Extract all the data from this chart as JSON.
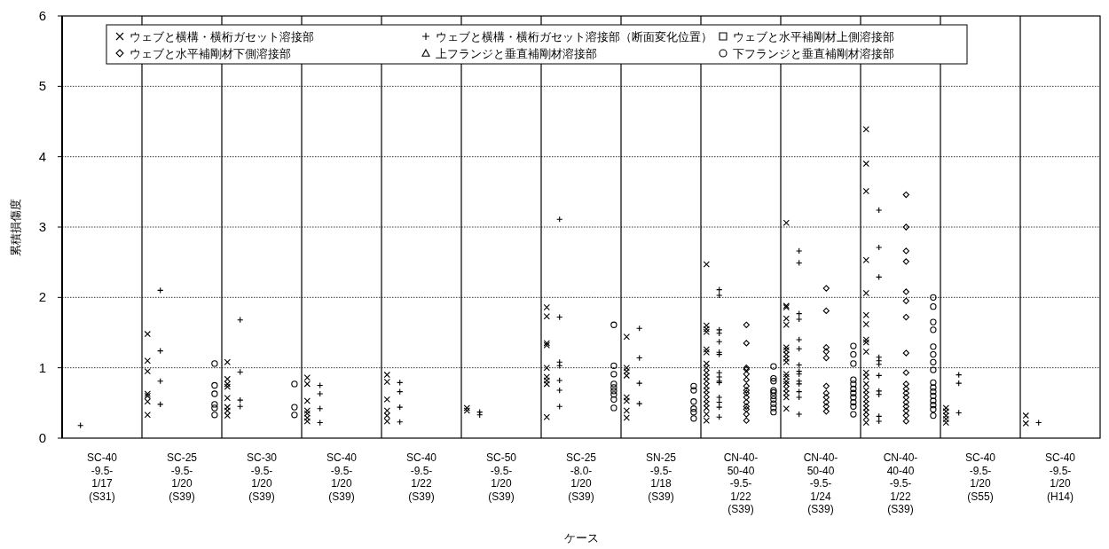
{
  "chart_data": {
    "type": "scatter",
    "xlabel": "ケース",
    "ylabel": "累積損傷度",
    "categories": [
      "SC-40\n-9.5-\n1/17\n(S31)",
      "SC-25\n-9.5-\n1/20\n(S39)",
      "SC-30\n-9.5-\n1/20\n(S39)",
      "SC-40\n-9.5-\n1/20\n(S39)",
      "SC-40\n-9.5-\n1/22\n(S39)",
      "SC-50\n-9.5-\n1/20\n(S39)",
      "SC-25\n-8.0-\n1/20\n(S39)",
      "SN-25\n-9.5-\n1/18\n(S39)",
      "CN-40-\n50-40\n-9.5-\n1/22\n(S39)",
      "CN-40-\n50-40\n-9.5-\n1/24\n(S39)",
      "CN-40-\n40-40\n-9.5-\n1/22\n(S39)",
      "SC-40\n-9.5-\n1/20\n(S55)",
      "SC-40\n-9.5-\n1/20\n(H14)"
    ],
    "ylim": [
      0,
      6
    ],
    "yticks": [
      0,
      1,
      2,
      3,
      4,
      5,
      6
    ],
    "grid": "y",
    "legend": "top",
    "series": [
      {
        "name": "ウェブと横構・横桁ガセット溶接部",
        "color": "#000000",
        "marker": "cross",
        "x": [
          "SC-25\n-9.5-\n1/20\n(S39)",
          "SC-25\n-9.5-\n1/20\n(S39)",
          "SC-25\n-9.5-\n1/20\n(S39)",
          "SC-25\n-9.5-\n1/20\n(S39)",
          "SC-25\n-9.5-\n1/20\n(S39)",
          "SC-25\n-9.5-\n1/20\n(S39)",
          "SC-25\n-9.5-\n1/20\n(S39)",
          "SC-30\n-9.5-\n1/20\n(S39)",
          "SC-30\n-9.5-\n1/20\n(S39)",
          "SC-30\n-9.5-\n1/20\n(S39)",
          "SC-30\n-9.5-\n1/20\n(S39)",
          "SC-30\n-9.5-\n1/20\n(S39)",
          "SC-30\n-9.5-\n1/20\n(S39)",
          "SC-30\n-9.5-\n1/20\n(S39)",
          "SC-30\n-9.5-\n1/20\n(S39)",
          "SC-40\n-9.5-\n1/20\n(S39)",
          "SC-40\n-9.5-\n1/20\n(S39)",
          "SC-40\n-9.5-\n1/20\n(S39)",
          "SC-40\n-9.5-\n1/20\n(S39)",
          "SC-40\n-9.5-\n1/20\n(S39)",
          "SC-40\n-9.5-\n1/20\n(S39)",
          "SC-40\n-9.5-\n1/20\n(S39)",
          "SC-40\n-9.5-\n1/22\n(S39)",
          "SC-40\n-9.5-\n1/22\n(S39)",
          "SC-40\n-9.5-\n1/22\n(S39)",
          "SC-40\n-9.5-\n1/22\n(S39)",
          "SC-40\n-9.5-\n1/22\n(S39)",
          "SC-40\n-9.5-\n1/22\n(S39)",
          "SC-50\n-9.5-\n1/20\n(S39)",
          "SC-50\n-9.5-\n1/20\n(S39)",
          "SC-25\n-8.0-\n1/20\n(S39)",
          "SC-25\n-8.0-\n1/20\n(S39)",
          "SC-25\n-8.0-\n1/20\n(S39)",
          "SC-25\n-8.0-\n1/20\n(S39)",
          "SC-25\n-8.0-\n1/20\n(S39)",
          "SC-25\n-8.0-\n1/20\n(S39)",
          "SC-25\n-8.0-\n1/20\n(S39)",
          "SC-25\n-8.0-\n1/20\n(S39)",
          "SC-25\n-8.0-\n1/20\n(S39)",
          "SN-25\n-9.5-\n1/18\n(S39)",
          "SN-25\n-9.5-\n1/18\n(S39)",
          "SN-25\n-9.5-\n1/18\n(S39)",
          "SN-25\n-9.5-\n1/18\n(S39)",
          "SN-25\n-9.5-\n1/18\n(S39)",
          "SN-25\n-9.5-\n1/18\n(S39)",
          "SN-25\n-9.5-\n1/18\n(S39)",
          "SN-25\n-9.5-\n1/18\n(S39)",
          "CN-40-\n50-40\n-9.5-\n1/22\n(S39)",
          "CN-40-\n50-40\n-9.5-\n1/22\n(S39)",
          "CN-40-\n50-40\n-9.5-\n1/22\n(S39)",
          "CN-40-\n50-40\n-9.5-\n1/22\n(S39)",
          "CN-40-\n50-40\n-9.5-\n1/22\n(S39)",
          "CN-40-\n50-40\n-9.5-\n1/22\n(S39)",
          "CN-40-\n50-40\n-9.5-\n1/22\n(S39)",
          "CN-40-\n50-40\n-9.5-\n1/22\n(S39)",
          "CN-40-\n50-40\n-9.5-\n1/22\n(S39)",
          "CN-40-\n50-40\n-9.5-\n1/22\n(S39)",
          "CN-40-\n50-40\n-9.5-\n1/22\n(S39)",
          "CN-40-\n50-40\n-9.5-\n1/22\n(S39)",
          "CN-40-\n50-40\n-9.5-\n1/22\n(S39)",
          "CN-40-\n50-40\n-9.5-\n1/22\n(S39)",
          "CN-40-\n50-40\n-9.5-\n1/22\n(S39)",
          "CN-40-\n50-40\n-9.5-\n1/22\n(S39)",
          "CN-40-\n50-40\n-9.5-\n1/22\n(S39)",
          "CN-40-\n50-40\n-9.5-\n1/22\n(S39)",
          "CN-40-\n50-40\n-9.5-\n1/22\n(S39)",
          "CN-40-\n50-40\n-9.5-\n1/24\n(S39)",
          "CN-40-\n50-40\n-9.5-\n1/24\n(S39)",
          "CN-40-\n50-40\n-9.5-\n1/24\n(S39)",
          "CN-40-\n50-40\n-9.5-\n1/24\n(S39)",
          "CN-40-\n50-40\n-9.5-\n1/24\n(S39)",
          "CN-40-\n50-40\n-9.5-\n1/24\n(S39)",
          "CN-40-\n50-40\n-9.5-\n1/24\n(S39)",
          "CN-40-\n50-40\n-9.5-\n1/24\n(S39)",
          "CN-40-\n50-40\n-9.5-\n1/24\n(S39)",
          "CN-40-\n50-40\n-9.5-\n1/24\n(S39)",
          "CN-40-\n50-40\n-9.5-\n1/24\n(S39)",
          "CN-40-\n50-40\n-9.5-\n1/24\n(S39)",
          "CN-40-\n50-40\n-9.5-\n1/24\n(S39)",
          "CN-40-\n50-40\n-9.5-\n1/24\n(S39)",
          "CN-40-\n50-40\n-9.5-\n1/24\n(S39)",
          "CN-40-\n50-40\n-9.5-\n1/24\n(S39)",
          "CN-40-\n50-40\n-9.5-\n1/24\n(S39)",
          "CN-40-\n50-40\n-9.5-\n1/24\n(S39)",
          "CN-40-\n40-40\n-9.5-\n1/22\n(S39)",
          "CN-40-\n40-40\n-9.5-\n1/22\n(S39)",
          "CN-40-\n40-40\n-9.5-\n1/22\n(S39)",
          "CN-40-\n40-40\n-9.5-\n1/22\n(S39)",
          "CN-40-\n40-40\n-9.5-\n1/22\n(S39)",
          "CN-40-\n40-40\n-9.5-\n1/22\n(S39)",
          "CN-40-\n40-40\n-9.5-\n1/22\n(S39)",
          "CN-40-\n40-40\n-9.5-\n1/22\n(S39)",
          "CN-40-\n40-40\n-9.5-\n1/22\n(S39)",
          "CN-40-\n40-40\n-9.5-\n1/22\n(S39)",
          "CN-40-\n40-40\n-9.5-\n1/22\n(S39)",
          "CN-40-\n40-40\n-9.5-\n1/22\n(S39)",
          "CN-40-\n40-40\n-9.5-\n1/22\n(S39)",
          "CN-40-\n40-40\n-9.5-\n1/22\n(S39)",
          "CN-40-\n40-40\n-9.5-\n1/22\n(S39)",
          "CN-40-\n40-40\n-9.5-\n1/22\n(S39)",
          "CN-40-\n40-40\n-9.5-\n1/22\n(S39)",
          "CN-40-\n40-40\n-9.5-\n1/22\n(S39)",
          "CN-40-\n40-40\n-9.5-\n1/22\n(S39)",
          "CN-40-\n40-40\n-9.5-\n1/22\n(S39)",
          "CN-40-\n40-40\n-9.5-\n1/22\n(S39)",
          "SC-40\n-9.5-\n1/20\n(S55)",
          "SC-40\n-9.5-\n1/20\n(S55)",
          "SC-40\n-9.5-\n1/20\n(S55)",
          "SC-40\n-9.5-\n1/20\n(S55)",
          "SC-40\n-9.5-\n1/20\n(S55)",
          "SC-40\n-9.5-\n1/20\n(H14)",
          "SC-40\n-9.5-\n1/20\n(H14)"
        ],
        "values": [
          1.48,
          1.1,
          0.95,
          0.63,
          0.6,
          0.52,
          0.33,
          1.08,
          0.84,
          0.77,
          0.73,
          0.57,
          0.44,
          0.39,
          0.32,
          0.86,
          0.77,
          0.53,
          0.39,
          0.35,
          0.29,
          0.24,
          0.9,
          0.8,
          0.55,
          0.39,
          0.32,
          0.24,
          0.43,
          0.39,
          1.86,
          1.73,
          1.35,
          1.32,
          1.0,
          0.87,
          0.82,
          0.77,
          0.3,
          1.44,
          1.0,
          0.95,
          0.89,
          0.58,
          0.53,
          0.39,
          0.29,
          2.47,
          1.6,
          1.55,
          1.51,
          1.26,
          1.22,
          1.06,
          1.0,
          0.93,
          0.87,
          0.81,
          0.74,
          0.68,
          0.62,
          0.55,
          0.49,
          0.43,
          0.34,
          0.25,
          3.06,
          1.88,
          1.86,
          1.7,
          1.61,
          1.29,
          1.25,
          1.19,
          1.13,
          1.08,
          0.91,
          0.87,
          0.81,
          0.77,
          0.7,
          0.64,
          0.58,
          0.42,
          4.39,
          3.9,
          3.51,
          2.53,
          2.06,
          1.75,
          1.62,
          1.4,
          1.36,
          1.23,
          0.93,
          0.87,
          0.77,
          0.68,
          0.62,
          0.55,
          0.49,
          0.43,
          0.37,
          0.3,
          0.22,
          0.43,
          0.38,
          0.32,
          0.27,
          0.22,
          0.32,
          0.21
        ]
      },
      {
        "name": "ウェブと横構・横桁ガセット溶接部（断面変化位置）",
        "color": "#000000",
        "marker": "plus",
        "x": [
          "SC-40\n-9.5-\n1/17\n(S31)",
          "SC-25\n-9.5-\n1/20\n(S39)",
          "SC-25\n-9.5-\n1/20\n(S39)",
          "SC-25\n-9.5-\n1/20\n(S39)",
          "SC-25\n-9.5-\n1/20\n(S39)",
          "SC-30\n-9.5-\n1/20\n(S39)",
          "SC-30\n-9.5-\n1/20\n(S39)",
          "SC-30\n-9.5-\n1/20\n(S39)",
          "SC-30\n-9.5-\n1/20\n(S39)",
          "SC-40\n-9.5-\n1/20\n(S39)",
          "SC-40\n-9.5-\n1/20\n(S39)",
          "SC-40\n-9.5-\n1/20\n(S39)",
          "SC-40\n-9.5-\n1/20\n(S39)",
          "SC-40\n-9.5-\n1/22\n(S39)",
          "SC-40\n-9.5-\n1/22\n(S39)",
          "SC-40\n-9.5-\n1/22\n(S39)",
          "SC-40\n-9.5-\n1/22\n(S39)",
          "SC-50\n-9.5-\n1/20\n(S39)",
          "SC-50\n-9.5-\n1/20\n(S39)",
          "SC-25\n-8.0-\n1/20\n(S39)",
          "SC-25\n-8.0-\n1/20\n(S39)",
          "SC-25\n-8.0-\n1/20\n(S39)",
          "SC-25\n-8.0-\n1/20\n(S39)",
          "SC-25\n-8.0-\n1/20\n(S39)",
          "SC-25\n-8.0-\n1/20\n(S39)",
          "SC-25\n-8.0-\n1/20\n(S39)",
          "SN-25\n-9.5-\n1/18\n(S39)",
          "SN-25\n-9.5-\n1/18\n(S39)",
          "SN-25\n-9.5-\n1/18\n(S39)",
          "SN-25\n-9.5-\n1/18\n(S39)",
          "CN-40-\n50-40\n-9.5-\n1/22\n(S39)",
          "CN-40-\n50-40\n-9.5-\n1/22\n(S39)",
          "CN-40-\n50-40\n-9.5-\n1/22\n(S39)",
          "CN-40-\n50-40\n-9.5-\n1/22\n(S39)",
          "CN-40-\n50-40\n-9.5-\n1/22\n(S39)",
          "CN-40-\n50-40\n-9.5-\n1/22\n(S39)",
          "CN-40-\n50-40\n-9.5-\n1/22\n(S39)",
          "CN-40-\n50-40\n-9.5-\n1/22\n(S39)",
          "CN-40-\n50-40\n-9.5-\n1/22\n(S39)",
          "CN-40-\n50-40\n-9.5-\n1/22\n(S39)",
          "CN-40-\n50-40\n-9.5-\n1/22\n(S39)",
          "CN-40-\n50-40\n-9.5-\n1/22\n(S39)",
          "CN-40-\n50-40\n-9.5-\n1/22\n(S39)",
          "CN-40-\n50-40\n-9.5-\n1/22\n(S39)",
          "CN-40-\n50-40\n-9.5-\n1/22\n(S39)",
          "CN-40-\n50-40\n-9.5-\n1/24\n(S39)",
          "CN-40-\n50-40\n-9.5-\n1/24\n(S39)",
          "CN-40-\n50-40\n-9.5-\n1/24\n(S39)",
          "CN-40-\n50-40\n-9.5-\n1/24\n(S39)",
          "CN-40-\n50-40\n-9.5-\n1/24\n(S39)",
          "CN-40-\n50-40\n-9.5-\n1/24\n(S39)",
          "CN-40-\n50-40\n-9.5-\n1/24\n(S39)",
          "CN-40-\n50-40\n-9.5-\n1/24\n(S39)",
          "CN-40-\n50-40\n-9.5-\n1/24\n(S39)",
          "CN-40-\n50-40\n-9.5-\n1/24\n(S39)",
          "CN-40-\n50-40\n-9.5-\n1/24\n(S39)",
          "CN-40-\n50-40\n-9.5-\n1/24\n(S39)",
          "CN-40-\n50-40\n-9.5-\n1/24\n(S39)",
          "CN-40-\n50-40\n-9.5-\n1/24\n(S39)",
          "CN-40-\n40-40\n-9.5-\n1/22\n(S39)",
          "CN-40-\n40-40\n-9.5-\n1/22\n(S39)",
          "CN-40-\n40-40\n-9.5-\n1/22\n(S39)",
          "CN-40-\n40-40\n-9.5-\n1/22\n(S39)",
          "CN-40-\n40-40\n-9.5-\n1/22\n(S39)",
          "CN-40-\n40-40\n-9.5-\n1/22\n(S39)",
          "CN-40-\n40-40\n-9.5-\n1/22\n(S39)",
          "CN-40-\n40-40\n-9.5-\n1/22\n(S39)",
          "CN-40-\n40-40\n-9.5-\n1/22\n(S39)",
          "CN-40-\n40-40\n-9.5-\n1/22\n(S39)",
          "CN-40-\n40-40\n-9.5-\n1/22\n(S39)",
          "SC-40\n-9.5-\n1/20\n(S55)",
          "SC-40\n-9.5-\n1/20\n(S55)",
          "SC-40\n-9.5-\n1/20\n(S55)",
          "SC-40\n-9.5-\n1/20\n(H14)"
        ],
        "values": [
          0.18,
          2.1,
          1.24,
          0.81,
          0.48,
          1.68,
          0.94,
          0.54,
          0.45,
          0.75,
          0.63,
          0.42,
          0.22,
          0.79,
          0.66,
          0.44,
          0.23,
          0.37,
          0.33,
          3.11,
          1.72,
          1.08,
          1.03,
          0.82,
          0.68,
          0.45,
          1.56,
          1.14,
          0.78,
          0.49,
          2.11,
          2.03,
          1.54,
          1.49,
          1.37,
          1.22,
          1.19,
          0.93,
          0.87,
          0.81,
          0.79,
          0.58,
          0.51,
          0.44,
          0.3,
          2.66,
          2.49,
          1.77,
          1.69,
          1.4,
          1.27,
          1.04,
          0.95,
          0.91,
          0.81,
          0.77,
          0.66,
          0.58,
          0.34,
          3.24,
          2.71,
          2.29,
          1.15,
          1.1,
          1.05,
          0.89,
          0.67,
          0.62,
          0.31,
          0.24,
          0.9,
          0.78,
          0.36,
          0.22
        ]
      },
      {
        "name": "ウェブと水平補剛材上側溶接部",
        "color": "#000000",
        "marker": "square",
        "values": [
          null,
          null,
          null,
          null,
          null,
          null,
          null,
          null,
          null,
          null,
          null,
          null,
          null
        ]
      },
      {
        "name": "ウェブと水平補剛材下側溶接部",
        "color": "#000000",
        "marker": "diamond",
        "x": [
          "CN-40-\n50-40\n-9.5-\n1/22\n(S39)",
          "CN-40-\n50-40\n-9.5-\n1/22\n(S39)",
          "CN-40-\n50-40\n-9.5-\n1/22\n(S39)",
          "CN-40-\n50-40\n-9.5-\n1/22\n(S39)",
          "CN-40-\n50-40\n-9.5-\n1/22\n(S39)",
          "CN-40-\n50-40\n-9.5-\n1/22\n(S39)",
          "CN-40-\n50-40\n-9.5-\n1/22\n(S39)",
          "CN-40-\n50-40\n-9.5-\n1/22\n(S39)",
          "CN-40-\n50-40\n-9.5-\n1/22\n(S39)",
          "CN-40-\n50-40\n-9.5-\n1/22\n(S39)",
          "CN-40-\n50-40\n-9.5-\n1/22\n(S39)",
          "CN-40-\n50-40\n-9.5-\n1/22\n(S39)",
          "CN-40-\n50-40\n-9.5-\n1/22\n(S39)",
          "CN-40-\n50-40\n-9.5-\n1/22\n(S39)",
          "CN-40-\n50-40\n-9.5-\n1/22\n(S39)",
          "CN-40-\n50-40\n-9.5-\n1/24\n(S39)",
          "CN-40-\n50-40\n-9.5-\n1/24\n(S39)",
          "CN-40-\n50-40\n-9.5-\n1/24\n(S39)",
          "CN-40-\n50-40\n-9.5-\n1/24\n(S39)",
          "CN-40-\n50-40\n-9.5-\n1/24\n(S39)",
          "CN-40-\n50-40\n-9.5-\n1/24\n(S39)",
          "CN-40-\n50-40\n-9.5-\n1/24\n(S39)",
          "CN-40-\n50-40\n-9.5-\n1/24\n(S39)",
          "CN-40-\n50-40\n-9.5-\n1/24\n(S39)",
          "CN-40-\n50-40\n-9.5-\n1/24\n(S39)",
          "CN-40-\n50-40\n-9.5-\n1/24\n(S39)",
          "CN-40-\n40-40\n-9.5-\n1/22\n(S39)",
          "CN-40-\n40-40\n-9.5-\n1/22\n(S39)",
          "CN-40-\n40-40\n-9.5-\n1/22\n(S39)",
          "CN-40-\n40-40\n-9.5-\n1/22\n(S39)",
          "CN-40-\n40-40\n-9.5-\n1/22\n(S39)",
          "CN-40-\n40-40\n-9.5-\n1/22\n(S39)",
          "CN-40-\n40-40\n-9.5-\n1/22\n(S39)",
          "CN-40-\n40-40\n-9.5-\n1/22\n(S39)",
          "CN-40-\n40-40\n-9.5-\n1/22\n(S39)",
          "CN-40-\n40-40\n-9.5-\n1/22\n(S39)",
          "CN-40-\n40-40\n-9.5-\n1/22\n(S39)",
          "CN-40-\n40-40\n-9.5-\n1/22\n(S39)",
          "CN-40-\n40-40\n-9.5-\n1/22\n(S39)",
          "CN-40-\n40-40\n-9.5-\n1/22\n(S39)",
          "CN-40-\n40-40\n-9.5-\n1/22\n(S39)",
          "CN-40-\n40-40\n-9.5-\n1/22\n(S39)",
          "CN-40-\n40-40\n-9.5-\n1/22\n(S39)",
          "CN-40-\n40-40\n-9.5-\n1/22\n(S39)"
        ],
        "values": [
          1.61,
          1.35,
          1.0,
          0.98,
          0.91,
          0.83,
          0.74,
          0.68,
          0.64,
          0.58,
          0.51,
          0.45,
          0.41,
          0.34,
          0.25,
          2.13,
          1.81,
          1.29,
          1.23,
          1.14,
          0.74,
          0.64,
          0.58,
          0.51,
          0.45,
          0.38,
          3.46,
          3.0,
          2.66,
          2.51,
          2.08,
          1.95,
          1.72,
          1.21,
          0.93,
          0.77,
          0.7,
          0.64,
          0.58,
          0.51,
          0.45,
          0.39,
          0.32,
          0.24
        ]
      },
      {
        "name": "上フランジと垂直補剛材溶接部",
        "color": "#000000",
        "marker": "triangle",
        "values": [
          null,
          null,
          null,
          null,
          null,
          null,
          null,
          null,
          null,
          null,
          null,
          null,
          null
        ]
      },
      {
        "name": "下フランジと垂直補剛材溶接部",
        "color": "#000000",
        "marker": "circle",
        "x": [
          "SC-25\n-9.5-\n1/20\n(S39)",
          "SC-25\n-9.5-\n1/20\n(S39)",
          "SC-25\n-9.5-\n1/20\n(S39)",
          "SC-25\n-9.5-\n1/20\n(S39)",
          "SC-25\n-9.5-\n1/20\n(S39)",
          "SC-25\n-9.5-\n1/20\n(S39)",
          "SC-30\n-9.5-\n1/20\n(S39)",
          "SC-30\n-9.5-\n1/20\n(S39)",
          "SC-30\n-9.5-\n1/20\n(S39)",
          "SC-25\n-8.0-\n1/20\n(S39)",
          "SC-25\n-8.0-\n1/20\n(S39)",
          "SC-25\n-8.0-\n1/20\n(S39)",
          "SC-25\n-8.0-\n1/20\n(S39)",
          "SC-25\n-8.0-\n1/20\n(S39)",
          "SC-25\n-8.0-\n1/20\n(S39)",
          "SC-25\n-8.0-\n1/20\n(S39)",
          "SC-25\n-8.0-\n1/20\n(S39)",
          "SC-25\n-8.0-\n1/20\n(S39)",
          "SN-25\n-9.5-\n1/18\n(S39)",
          "SN-25\n-9.5-\n1/18\n(S39)",
          "SN-25\n-9.5-\n1/18\n(S39)",
          "SN-25\n-9.5-\n1/18\n(S39)",
          "SN-25\n-9.5-\n1/18\n(S39)",
          "SN-25\n-9.5-\n1/18\n(S39)",
          "CN-40-\n50-40\n-9.5-\n1/22\n(S39)",
          "CN-40-\n50-40\n-9.5-\n1/22\n(S39)",
          "CN-40-\n50-40\n-9.5-\n1/22\n(S39)",
          "CN-40-\n50-40\n-9.5-\n1/22\n(S39)",
          "CN-40-\n50-40\n-9.5-\n1/22\n(S39)",
          "CN-40-\n50-40\n-9.5-\n1/22\n(S39)",
          "CN-40-\n50-40\n-9.5-\n1/22\n(S39)",
          "CN-40-\n50-40\n-9.5-\n1/22\n(S39)",
          "CN-40-\n50-40\n-9.5-\n1/22\n(S39)",
          "CN-40-\n50-40\n-9.5-\n1/22\n(S39)",
          "CN-40-\n50-40\n-9.5-\n1/24\n(S39)",
          "CN-40-\n50-40\n-9.5-\n1/24\n(S39)",
          "CN-40-\n50-40\n-9.5-\n1/24\n(S39)",
          "CN-40-\n50-40\n-9.5-\n1/24\n(S39)",
          "CN-40-\n50-40\n-9.5-\n1/24\n(S39)",
          "CN-40-\n50-40\n-9.5-\n1/24\n(S39)",
          "CN-40-\n50-40\n-9.5-\n1/24\n(S39)",
          "CN-40-\n50-40\n-9.5-\n1/24\n(S39)",
          "CN-40-\n50-40\n-9.5-\n1/24\n(S39)",
          "CN-40-\n50-40\n-9.5-\n1/24\n(S39)",
          "CN-40-\n50-40\n-9.5-\n1/24\n(S39)",
          "CN-40-\n40-40\n-9.5-\n1/22\n(S39)",
          "CN-40-\n40-40\n-9.5-\n1/22\n(S39)",
          "CN-40-\n40-40\n-9.5-\n1/22\n(S39)",
          "CN-40-\n40-40\n-9.5-\n1/22\n(S39)",
          "CN-40-\n40-40\n-9.5-\n1/22\n(S39)",
          "CN-40-\n40-40\n-9.5-\n1/22\n(S39)",
          "CN-40-\n40-40\n-9.5-\n1/22\n(S39)",
          "CN-40-\n40-40\n-9.5-\n1/22\n(S39)",
          "CN-40-\n40-40\n-9.5-\n1/22\n(S39)",
          "CN-40-\n40-40\n-9.5-\n1/22\n(S39)",
          "CN-40-\n40-40\n-9.5-\n1/22\n(S39)",
          "CN-40-\n40-40\n-9.5-\n1/22\n(S39)",
          "CN-40-\n40-40\n-9.5-\n1/22\n(S39)",
          "CN-40-\n40-40\n-9.5-\n1/22\n(S39)",
          "CN-40-\n40-40\n-9.5-\n1/22\n(S39)",
          "CN-40-\n40-40\n-9.5-\n1/22\n(S39)"
        ],
        "values": [
          1.06,
          0.75,
          0.63,
          0.48,
          0.43,
          0.33,
          0.77,
          0.44,
          0.33,
          1.61,
          1.03,
          0.91,
          0.77,
          0.72,
          0.67,
          0.62,
          0.55,
          0.43,
          0.74,
          0.68,
          0.52,
          0.42,
          0.37,
          0.28,
          1.02,
          0.85,
          0.81,
          0.68,
          0.65,
          0.6,
          0.55,
          0.49,
          0.43,
          0.37,
          1.31,
          1.19,
          1.06,
          0.83,
          0.77,
          0.7,
          0.64,
          0.58,
          0.51,
          0.45,
          0.34,
          2.0,
          1.87,
          1.65,
          1.54,
          1.3,
          1.19,
          1.08,
          0.97,
          0.79,
          0.72,
          0.66,
          0.6,
          0.53,
          0.47,
          0.41,
          0.32
        ]
      }
    ]
  }
}
